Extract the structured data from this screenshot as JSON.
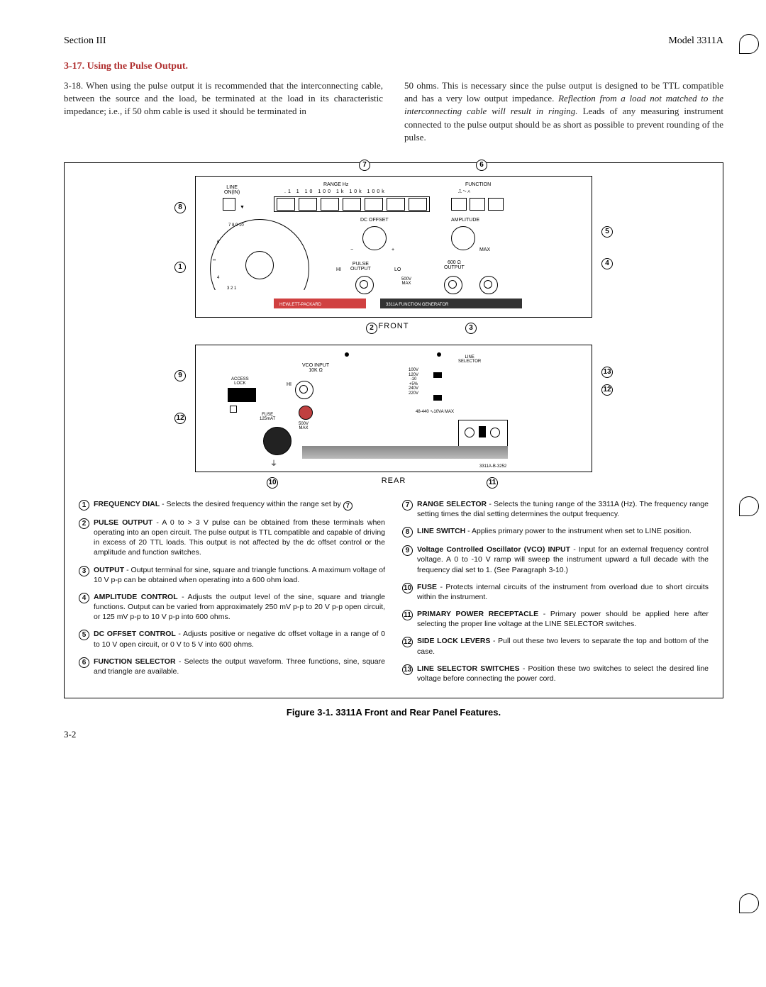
{
  "header": {
    "section": "Section III",
    "model": "Model 3311A"
  },
  "title": "3-17.  Using the Pulse Output.",
  "para_left": "3-18.  When using the pulse output it is recommended that the interconnecting cable, between the source and the load, be terminated at the load in its characteristic impedance; i.e., if 50 ohm cable is used it should be terminated in",
  "para_right_1": "50 ohms. This is necessary since the pulse output is designed to be TTL compatible and has a very low output impedance. ",
  "para_right_italic": "Reflection from a load not matched to the interconnecting cable will result in ringing.",
  "para_right_2": " Leads of any measuring instrument connected to the pulse output should be as short as possible to prevent rounding of the pulse.",
  "front": {
    "caption": "FRONT",
    "labels": {
      "line": "LINE\nON(IN)",
      "range": "RANGE Hz",
      "range_vals": ".1   1   10  100  1k  10k 100k",
      "function": "FUNCTION",
      "dc_offset": "DC OFFSET",
      "amplitude": "AMPLITUDE",
      "max": "MAX",
      "pulse": "PULSE\nOUTPUT",
      "hi": "HI",
      "lo": "LO",
      "out600": "600 Ω\nOUTPUT",
      "v500": "500V\nMAX",
      "hp": "HEWLETT-PACKARD",
      "model_strip": "3311A FUNCTION GENERATOR"
    }
  },
  "rear": {
    "caption": "REAR",
    "labels": {
      "vco": "VCO INPUT\n10K Ω",
      "access": "ACCESS\nLOCK",
      "hi": "HI",
      "fuse": "FUSE\n125mAT",
      "v500": "500V\nMAX",
      "line_sel": "LINE\nSELECTOR",
      "volts": "100V\n120V\n-10\n+5%\n240V\n220V",
      "hz": "48-440 ∿10VA MAX",
      "part": "3311A-B-3252"
    }
  },
  "legend": [
    {
      "n": "1",
      "t": "<b>FREQUENCY DIAL</b> - Selects the desired frequency within the range set by <span class=\"ref-circ\">7</span>"
    },
    {
      "n": "2",
      "t": "<b>PULSE OUTPUT</b> - A 0 to > 3 V pulse can be obtained from these terminals when operating into an open circuit. The pulse output is TTL compatible and capable of driving in excess of 20 TTL loads. This output is not affected by the dc offset control or the amplitude and function switches."
    },
    {
      "n": "3",
      "t": "<b>OUTPUT</b> - Output terminal for sine, square and triangle functions. A maximum voltage of 10 V p-p can be obtained when operating into a 600 ohm load."
    },
    {
      "n": "4",
      "t": "<b>AMPLITUDE CONTROL</b> - Adjusts the output level of the sine, square and triangle functions. Output can be varied from approximately 250 mV p-p to 20 V p-p open circuit, or 125 mV p-p to 10 V p-p into 600 ohms."
    },
    {
      "n": "5",
      "t": "<b>DC OFFSET CONTROL</b> - Adjusts positive or negative dc offset voltage in a range of 0 to 10 V open circuit, or 0 V to 5 V into 600 ohms."
    },
    {
      "n": "6",
      "t": "<b>FUNCTION SELECTOR</b> - Selects the output waveform. Three functions, sine, square and triangle are available."
    },
    {
      "n": "7",
      "t": "<b>RANGE SELECTOR</b> - Selects the tuning range of the 3311A (Hz). The frequency range setting times the dial setting determines the output frequency."
    },
    {
      "n": "8",
      "t": "<b>LINE SWITCH</b> - Applies primary power to the instrument when set to LINE position."
    },
    {
      "n": "9",
      "t": "<b>Voltage Controlled Oscillator (VCO) INPUT</b> - Input for an external frequency control voltage. A 0 to -10 V ramp will sweep the instrument upward a full decade with the frequency dial set to 1. (See Paragraph 3-10.)"
    },
    {
      "n": "10",
      "t": "<b>FUSE</b> - Protects internal circuits of the instrument from overload due to short circuits within the instrument."
    },
    {
      "n": "11",
      "t": "<b>PRIMARY POWER RECEPTACLE</b> - Primary power should be applied here after selecting the proper line voltage at the LINE SELECTOR switches."
    },
    {
      "n": "12",
      "t": "<b>SIDE LOCK LEVERS</b> - Pull out these two levers to separate the top and bottom of the case."
    },
    {
      "n": "13",
      "t": "<b>LINE SELECTOR SWITCHES</b> - Position these two switches to select the desired line voltage before connecting the power cord."
    }
  ],
  "figure_caption": "Figure 3-1.  3311A Front and Rear Panel Features.",
  "page_num": "3-2"
}
